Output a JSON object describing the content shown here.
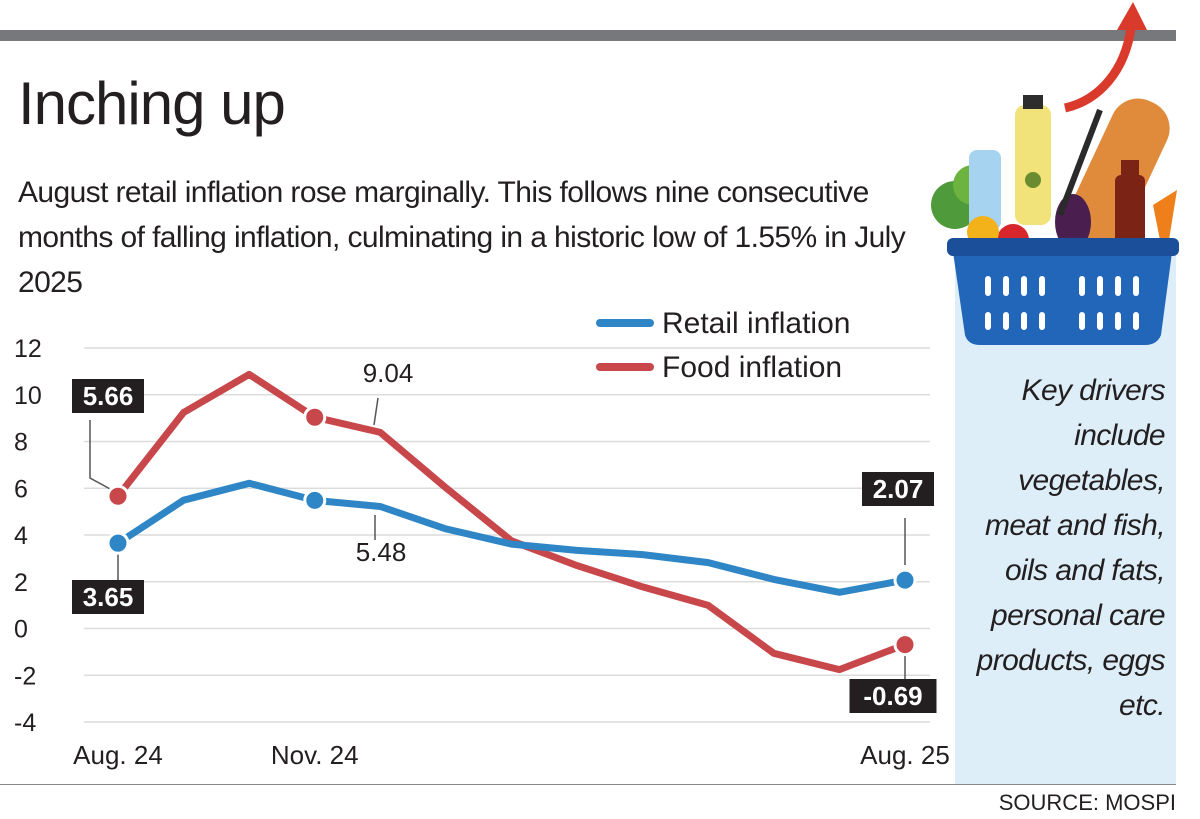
{
  "header": {
    "title": "Inching up",
    "subtitle": "August retail inflation rose marginally. This follows nine consecutive months of falling inflation, culminating in a historic low of 1.55% in July 2025"
  },
  "side_panel": {
    "text": "Key drivers include vegetables, meat and fish, oils and fats, personal care products, eggs etc."
  },
  "source": "SOURCE: MOSPI",
  "colors": {
    "retail": "#2f86c6",
    "food": "#c8474a",
    "panel": "#ddeef8",
    "label_box": "#231f20"
  },
  "icons": [
    "grocery-basket-icon",
    "arrow-up-icon"
  ],
  "chart_data": {
    "type": "line",
    "x": [
      "Aug. 24",
      "Sep. 24",
      "Oct. 24",
      "Nov. 24",
      "Dec. 24",
      "Jan. 25",
      "Feb. 25",
      "Mar. 25",
      "Apr. 25",
      "May. 25",
      "Jun. 25",
      "Jul. 25",
      "Aug. 25"
    ],
    "x_tick_labels": [
      {
        "index": 0,
        "label": "Aug. 24"
      },
      {
        "index": 3,
        "label": "Nov. 24"
      },
      {
        "index": 12,
        "label": "Aug. 25"
      }
    ],
    "yticks": [
      "12",
      "10",
      "8",
      "6",
      "4",
      "2",
      "0",
      "-2",
      "-4"
    ],
    "ylim": [
      -4,
      12
    ],
    "grid": true,
    "legend_position": "top-right",
    "series": [
      {
        "name": "Retail inflation",
        "color": "#2f86c6",
        "values": [
          3.65,
          5.49,
          6.21,
          5.48,
          5.22,
          4.26,
          3.61,
          3.34,
          3.16,
          2.82,
          2.1,
          1.55,
          2.07
        ]
      },
      {
        "name": "Food inflation",
        "color": "#c8474a",
        "values": [
          5.66,
          9.24,
          10.87,
          9.04,
          8.39,
          6.02,
          3.75,
          2.69,
          1.78,
          0.99,
          -1.06,
          -1.76,
          -0.69
        ]
      }
    ],
    "annotations": [
      {
        "series": 1,
        "index": 0,
        "text": "5.66",
        "boxed": true
      },
      {
        "series": 0,
        "index": 0,
        "text": "3.65",
        "boxed": true
      },
      {
        "series": 1,
        "index": 3,
        "text": "9.04",
        "boxed": false
      },
      {
        "series": 0,
        "index": 3,
        "text": "5.48",
        "boxed": false
      },
      {
        "series": 0,
        "index": 12,
        "text": "2.07",
        "boxed": true
      },
      {
        "series": 1,
        "index": 12,
        "text": "-0.69",
        "boxed": true
      }
    ]
  }
}
